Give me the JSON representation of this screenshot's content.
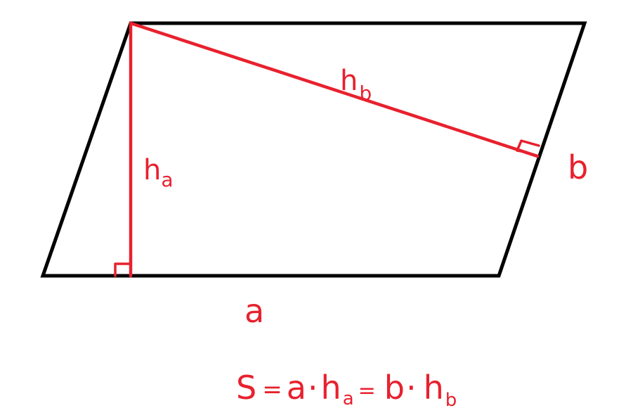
{
  "colors": {
    "shape": "#000000",
    "annotation": "#e8212e",
    "background": "#ffffff"
  },
  "labels": {
    "side_a": "a",
    "side_b": "b",
    "height_a": {
      "main": "h",
      "sub": "a"
    },
    "height_b": {
      "main": "h",
      "sub": "b"
    }
  },
  "formula": {
    "lhs": "S",
    "eq1": "=",
    "term1": {
      "main": "a",
      "dot": "·",
      "h": "h",
      "sub": "a"
    },
    "eq2": "=",
    "term2": {
      "main": "b",
      "dot": "·",
      "h": "h",
      "sub": "b"
    }
  }
}
